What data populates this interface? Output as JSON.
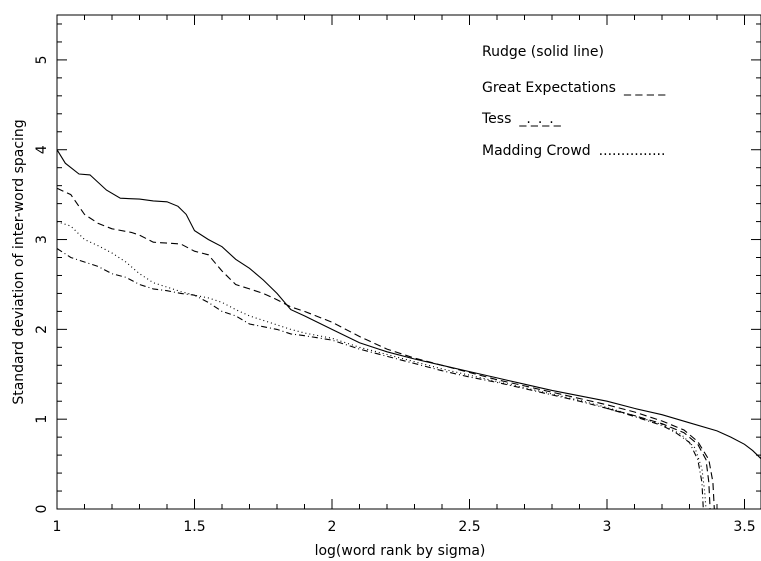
{
  "chart_data": {
    "type": "line",
    "title": "",
    "xlabel": "log(word rank by sigma)",
    "ylabel": "Standard deviation of inter-word spacing",
    "xlim": [
      1,
      3.56
    ],
    "ylim": [
      0,
      5.5
    ],
    "grid": false,
    "legend_placement": "top-right",
    "x_ticks": [
      "1",
      "1.5",
      "2",
      "2.5",
      "3",
      "3.5"
    ],
    "y_ticks": [
      "0",
      "1",
      "2",
      "3",
      "4",
      "5"
    ],
    "legend": [
      {
        "label": "Rudge (solid line)",
        "sample": "",
        "series": "rudge"
      },
      {
        "label": "Great Expectations",
        "sample": "_ _ _ _",
        "series": "great"
      },
      {
        "label": "Tess",
        "sample": "_._._._",
        "series": "tess"
      },
      {
        "label": "Madding Crowd",
        "sample": "...............",
        "series": "madding"
      }
    ],
    "series": [
      {
        "key": "rudge",
        "style": "solid",
        "points": [
          [
            1.0,
            4.0
          ],
          [
            1.03,
            3.85
          ],
          [
            1.08,
            3.73
          ],
          [
            1.12,
            3.72
          ],
          [
            1.18,
            3.55
          ],
          [
            1.23,
            3.46
          ],
          [
            1.3,
            3.45
          ],
          [
            1.35,
            3.43
          ],
          [
            1.4,
            3.42
          ],
          [
            1.44,
            3.37
          ],
          [
            1.47,
            3.28
          ],
          [
            1.5,
            3.1
          ],
          [
            1.55,
            3.0
          ],
          [
            1.6,
            2.92
          ],
          [
            1.65,
            2.78
          ],
          [
            1.7,
            2.68
          ],
          [
            1.75,
            2.55
          ],
          [
            1.8,
            2.4
          ],
          [
            1.85,
            2.22
          ],
          [
            1.9,
            2.15
          ],
          [
            2.0,
            2.0
          ],
          [
            2.1,
            1.85
          ],
          [
            2.2,
            1.75
          ],
          [
            2.3,
            1.67
          ],
          [
            2.4,
            1.6
          ],
          [
            2.5,
            1.53
          ],
          [
            2.6,
            1.46
          ],
          [
            2.7,
            1.39
          ],
          [
            2.8,
            1.32
          ],
          [
            2.9,
            1.26
          ],
          [
            3.0,
            1.2
          ],
          [
            3.1,
            1.12
          ],
          [
            3.2,
            1.05
          ],
          [
            3.3,
            0.96
          ],
          [
            3.4,
            0.87
          ],
          [
            3.45,
            0.8
          ],
          [
            3.5,
            0.72
          ],
          [
            3.53,
            0.65
          ],
          [
            3.56,
            0.56
          ]
        ]
      },
      {
        "key": "great",
        "style": "dashed",
        "points": [
          [
            1.0,
            3.57
          ],
          [
            1.05,
            3.5
          ],
          [
            1.1,
            3.28
          ],
          [
            1.15,
            3.18
          ],
          [
            1.2,
            3.12
          ],
          [
            1.27,
            3.08
          ],
          [
            1.3,
            3.05
          ],
          [
            1.35,
            2.97
          ],
          [
            1.45,
            2.95
          ],
          [
            1.5,
            2.87
          ],
          [
            1.55,
            2.83
          ],
          [
            1.6,
            2.65
          ],
          [
            1.65,
            2.5
          ],
          [
            1.7,
            2.45
          ],
          [
            1.75,
            2.4
          ],
          [
            1.8,
            2.33
          ],
          [
            1.85,
            2.25
          ],
          [
            1.9,
            2.2
          ],
          [
            2.0,
            2.08
          ],
          [
            2.1,
            1.92
          ],
          [
            2.2,
            1.78
          ],
          [
            2.3,
            1.68
          ],
          [
            2.4,
            1.6
          ],
          [
            2.5,
            1.52
          ],
          [
            2.6,
            1.44
          ],
          [
            2.7,
            1.37
          ],
          [
            2.8,
            1.3
          ],
          [
            2.9,
            1.23
          ],
          [
            3.0,
            1.16
          ],
          [
            3.1,
            1.08
          ],
          [
            3.2,
            0.98
          ],
          [
            3.28,
            0.88
          ],
          [
            3.33,
            0.75
          ],
          [
            3.37,
            0.55
          ],
          [
            3.385,
            0.3
          ],
          [
            3.39,
            0.0
          ]
        ]
      },
      {
        "key": "great2",
        "style": "dashed",
        "points": [
          [
            3.0,
            1.12
          ],
          [
            3.1,
            1.04
          ],
          [
            3.2,
            0.95
          ],
          [
            3.28,
            0.85
          ],
          [
            3.33,
            0.72
          ],
          [
            3.36,
            0.55
          ],
          [
            3.37,
            0.3
          ],
          [
            3.375,
            0.0
          ]
        ]
      },
      {
        "key": "madding",
        "style": "dotted",
        "points": [
          [
            1.0,
            3.2
          ],
          [
            1.05,
            3.15
          ],
          [
            1.1,
            3.0
          ],
          [
            1.15,
            2.93
          ],
          [
            1.2,
            2.85
          ],
          [
            1.25,
            2.75
          ],
          [
            1.3,
            2.62
          ],
          [
            1.35,
            2.52
          ],
          [
            1.4,
            2.47
          ],
          [
            1.45,
            2.42
          ],
          [
            1.5,
            2.38
          ],
          [
            1.55,
            2.35
          ],
          [
            1.6,
            2.3
          ],
          [
            1.65,
            2.22
          ],
          [
            1.7,
            2.15
          ],
          [
            1.75,
            2.1
          ],
          [
            1.8,
            2.05
          ],
          [
            1.85,
            2.0
          ],
          [
            1.9,
            1.96
          ],
          [
            2.0,
            1.9
          ],
          [
            2.1,
            1.8
          ],
          [
            2.2,
            1.72
          ],
          [
            2.3,
            1.64
          ],
          [
            2.4,
            1.56
          ],
          [
            2.5,
            1.49
          ],
          [
            2.6,
            1.42
          ],
          [
            2.7,
            1.35
          ],
          [
            2.8,
            1.28
          ],
          [
            2.9,
            1.21
          ],
          [
            3.0,
            1.13
          ],
          [
            3.1,
            1.04
          ],
          [
            3.2,
            0.94
          ],
          [
            3.27,
            0.83
          ],
          [
            3.32,
            0.68
          ],
          [
            3.345,
            0.45
          ],
          [
            3.355,
            0.2
          ],
          [
            3.36,
            0.0
          ]
        ]
      },
      {
        "key": "tess",
        "style": "dashdot",
        "points": [
          [
            1.0,
            2.9
          ],
          [
            1.05,
            2.8
          ],
          [
            1.1,
            2.75
          ],
          [
            1.15,
            2.7
          ],
          [
            1.2,
            2.62
          ],
          [
            1.25,
            2.58
          ],
          [
            1.3,
            2.5
          ],
          [
            1.35,
            2.45
          ],
          [
            1.4,
            2.43
          ],
          [
            1.45,
            2.4
          ],
          [
            1.5,
            2.38
          ],
          [
            1.55,
            2.3
          ],
          [
            1.6,
            2.2
          ],
          [
            1.65,
            2.15
          ],
          [
            1.7,
            2.06
          ],
          [
            1.75,
            2.03
          ],
          [
            1.8,
            2.0
          ],
          [
            1.85,
            1.95
          ],
          [
            1.9,
            1.93
          ],
          [
            2.0,
            1.88
          ],
          [
            2.1,
            1.78
          ],
          [
            2.2,
            1.7
          ],
          [
            2.3,
            1.62
          ],
          [
            2.4,
            1.54
          ],
          [
            2.5,
            1.47
          ],
          [
            2.6,
            1.41
          ],
          [
            2.7,
            1.34
          ],
          [
            2.8,
            1.27
          ],
          [
            2.9,
            1.2
          ],
          [
            3.0,
            1.12
          ],
          [
            3.1,
            1.03
          ],
          [
            3.2,
            0.93
          ],
          [
            3.25,
            0.85
          ],
          [
            3.3,
            0.74
          ],
          [
            3.33,
            0.55
          ],
          [
            3.345,
            0.3
          ],
          [
            3.35,
            0.0
          ]
        ]
      }
    ]
  }
}
